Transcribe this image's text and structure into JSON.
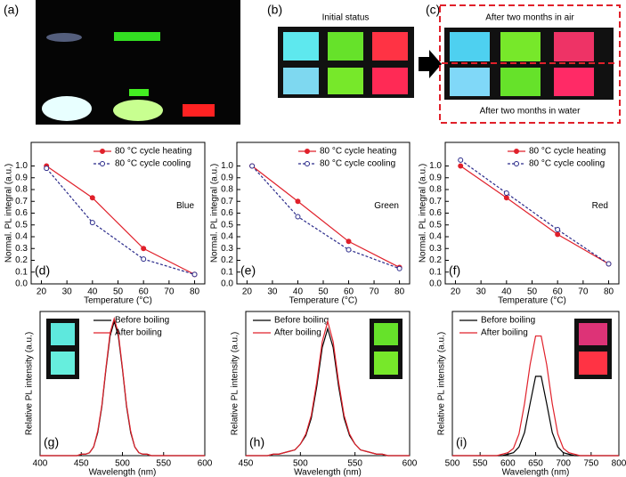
{
  "photos": {
    "a": "(a)",
    "b": "(b)",
    "b_caption": "Initial status",
    "c": "(c)",
    "c_top": "After two months in air",
    "c_bottom": "After two months in water"
  },
  "chart_data": [
    {
      "type": "line",
      "panel": "(d)",
      "annotation": "Blue",
      "xlabel": "Temperature (°C)",
      "ylabel": "Normal. PL integral (a.u.)",
      "x": [
        22,
        40,
        60,
        80
      ],
      "xlim": [
        16,
        84
      ],
      "xticks": [
        20,
        30,
        40,
        50,
        60,
        70,
        80
      ],
      "ylim": [
        0,
        1.2
      ],
      "yticks": [
        {
          "value": 0,
          "label": "0.0"
        },
        {
          "value": 0.1,
          "label": "0.1"
        },
        {
          "value": 0.2,
          "label": "0.2"
        },
        {
          "value": 0.3,
          "label": "0.3"
        },
        {
          "value": 0.4,
          "label": "0.4"
        },
        {
          "value": 0.5,
          "label": "0.5"
        },
        {
          "value": 0.6,
          "label": "0.6"
        },
        {
          "value": 0.7,
          "label": "0.7"
        },
        {
          "value": 0.8,
          "label": "0.8"
        },
        {
          "value": 0.9,
          "label": "0.9"
        },
        {
          "value": 1,
          "label": "1.0"
        }
      ],
      "legend": "upper right",
      "series": [
        {
          "name": "80 °C cycle heating",
          "color": "#e0202a",
          "dashed": false,
          "marker": "filled",
          "values": [
            1.0,
            0.73,
            0.3,
            0.08
          ]
        },
        {
          "name": "80 °C cycle cooling",
          "color": "#2a2a8a",
          "dashed": true,
          "marker": "open",
          "values": [
            0.98,
            0.52,
            0.21,
            0.08
          ]
        }
      ]
    },
    {
      "type": "line",
      "panel": "(e)",
      "annotation": "Green",
      "xlabel": "Temperature (°C)",
      "ylabel": "Normal. PL integral (a.u.)",
      "x": [
        22,
        40,
        60,
        80
      ],
      "xlim": [
        16,
        84
      ],
      "xticks": [
        20,
        30,
        40,
        50,
        60,
        70,
        80
      ],
      "ylim": [
        0,
        1.2
      ],
      "yticks": [
        {
          "value": 0,
          "label": "0.0"
        },
        {
          "value": 0.1,
          "label": "0.1"
        },
        {
          "value": 0.2,
          "label": "0.2"
        },
        {
          "value": 0.3,
          "label": "0.3"
        },
        {
          "value": 0.4,
          "label": "0.4"
        },
        {
          "value": 0.5,
          "label": "0.5"
        },
        {
          "value": 0.6,
          "label": "0.6"
        },
        {
          "value": 0.7,
          "label": "0.7"
        },
        {
          "value": 0.8,
          "label": "0.8"
        },
        {
          "value": 0.9,
          "label": "0.9"
        },
        {
          "value": 1,
          "label": "1.0"
        }
      ],
      "legend": "upper right",
      "series": [
        {
          "name": "80 °C cycle heating",
          "color": "#e0202a",
          "dashed": false,
          "marker": "filled",
          "values": [
            1.0,
            0.7,
            0.36,
            0.14
          ]
        },
        {
          "name": "80 °C cycle cooling",
          "color": "#2a2a8a",
          "dashed": true,
          "marker": "open",
          "values": [
            1.0,
            0.57,
            0.29,
            0.13
          ]
        }
      ]
    },
    {
      "type": "line",
      "panel": "(f)",
      "annotation": "Red",
      "xlabel": "Temperature (°C)",
      "ylabel": "Normal. PL integral (a.u.)",
      "x": [
        22,
        40,
        60,
        80
      ],
      "xlim": [
        16,
        84
      ],
      "xticks": [
        20,
        30,
        40,
        50,
        60,
        70,
        80
      ],
      "ylim": [
        0,
        1.2
      ],
      "yticks": [
        {
          "value": 0,
          "label": "0.0"
        },
        {
          "value": 0.1,
          "label": "0.1"
        },
        {
          "value": 0.2,
          "label": "0.2"
        },
        {
          "value": 0.3,
          "label": "0.3"
        },
        {
          "value": 0.4,
          "label": "0.4"
        },
        {
          "value": 0.5,
          "label": "0.5"
        },
        {
          "value": 0.6,
          "label": "0.6"
        },
        {
          "value": 0.7,
          "label": "0.7"
        },
        {
          "value": 0.8,
          "label": "0.8"
        },
        {
          "value": 0.9,
          "label": "0.9"
        },
        {
          "value": 1,
          "label": "1.0"
        }
      ],
      "legend": "upper right",
      "series": [
        {
          "name": "80 °C cycle heating",
          "color": "#e0202a",
          "dashed": false,
          "marker": "filled",
          "values": [
            1.0,
            0.73,
            0.42,
            0.17
          ]
        },
        {
          "name": "80 °C cycle cooling",
          "color": "#2a2a8a",
          "dashed": true,
          "marker": "open",
          "values": [
            1.05,
            0.77,
            0.46,
            0.17
          ]
        }
      ]
    },
    {
      "type": "line",
      "panel": "(g)",
      "xlabel": "Wavelength (nm)",
      "ylabel": "Relative PL intensity (a.u.)",
      "x": [
        400,
        405,
        410,
        415,
        420,
        425,
        430,
        435,
        440,
        445,
        450,
        455,
        460,
        465,
        470,
        475,
        480,
        485,
        490,
        495,
        500,
        505,
        510,
        515,
        520,
        525,
        530,
        535,
        540,
        545,
        550,
        555,
        560,
        565,
        570,
        575,
        580,
        585,
        590,
        595,
        600
      ],
      "xlim": [
        400,
        600
      ],
      "xticks": [
        400,
        450,
        500,
        550,
        600
      ],
      "ylim": [
        0,
        1
      ],
      "legend": "upper right",
      "series": [
        {
          "name": "Before boiling",
          "color": "#000000",
          "dashed": false,
          "marker": "none",
          "values": [
            0,
            0,
            0,
            0,
            0,
            0,
            0,
            0,
            0,
            0,
            0.01,
            0.01,
            0.02,
            0.06,
            0.16,
            0.34,
            0.6,
            0.83,
            0.93,
            0.83,
            0.6,
            0.34,
            0.16,
            0.06,
            0.02,
            0.01,
            0.01,
            0,
            0,
            0,
            0,
            0,
            0,
            0,
            0,
            0,
            0,
            0,
            0,
            0,
            0
          ]
        },
        {
          "name": "After boiling",
          "color": "#e0202a",
          "dashed": false,
          "marker": "none",
          "values": [
            0,
            0,
            0,
            0,
            0,
            0,
            0,
            0,
            0,
            0,
            0.01,
            0.01,
            0.02,
            0.06,
            0.17,
            0.35,
            0.61,
            0.85,
            0.95,
            0.85,
            0.61,
            0.35,
            0.17,
            0.06,
            0.02,
            0.01,
            0.01,
            0,
            0,
            0,
            0,
            0,
            0,
            0,
            0,
            0,
            0,
            0,
            0,
            0,
            0
          ]
        }
      ]
    },
    {
      "type": "line",
      "panel": "(h)",
      "xlabel": "Wavelength (nm)",
      "ylabel": "Relative PL intensity (a.u.)",
      "x": [
        450,
        455,
        460,
        465,
        470,
        475,
        480,
        485,
        490,
        495,
        500,
        505,
        510,
        515,
        520,
        525,
        530,
        535,
        540,
        545,
        550,
        555,
        560,
        565,
        570,
        575,
        580,
        585,
        590,
        595,
        600
      ],
      "xlim": [
        450,
        600
      ],
      "xticks": [
        450,
        500,
        550,
        600
      ],
      "ylim": [
        0,
        1
      ],
      "legend": "upper left",
      "series": [
        {
          "name": "Before boiling",
          "color": "#000000",
          "dashed": false,
          "marker": "none",
          "values": [
            0,
            0,
            0,
            0,
            0,
            0.01,
            0.01,
            0.02,
            0.03,
            0.04,
            0.08,
            0.14,
            0.26,
            0.48,
            0.75,
            0.88,
            0.75,
            0.48,
            0.26,
            0.14,
            0.08,
            0.04,
            0.03,
            0.02,
            0.01,
            0.01,
            0,
            0,
            0,
            0,
            0
          ]
        },
        {
          "name": "After boiling",
          "color": "#e0202a",
          "dashed": false,
          "marker": "none",
          "values": [
            0,
            0,
            0,
            0,
            0,
            0.01,
            0.01,
            0.02,
            0.03,
            0.04,
            0.08,
            0.15,
            0.28,
            0.51,
            0.79,
            0.93,
            0.79,
            0.51,
            0.28,
            0.15,
            0.08,
            0.04,
            0.03,
            0.02,
            0.01,
            0.01,
            0,
            0,
            0,
            0,
            0
          ]
        }
      ]
    },
    {
      "type": "line",
      "panel": "(i)",
      "xlabel": "Wavelength (nm)",
      "ylabel": "Relative PL intensity (a.u.)",
      "x": [
        500,
        510,
        520,
        530,
        540,
        550,
        560,
        570,
        580,
        590,
        600,
        610,
        620,
        630,
        640,
        650,
        660,
        670,
        680,
        690,
        700,
        710,
        720,
        730,
        740,
        750,
        760,
        770,
        780,
        790,
        800
      ],
      "xlim": [
        500,
        800
      ],
      "xticks": [
        500,
        550,
        600,
        650,
        700,
        750,
        800
      ],
      "ylim": [
        0,
        1
      ],
      "legend": "upper left",
      "series": [
        {
          "name": "Before boiling",
          "color": "#000000",
          "dashed": false,
          "marker": "none",
          "values": [
            0,
            0,
            0,
            0,
            0,
            0,
            0,
            0,
            0,
            0,
            0.01,
            0.02,
            0.06,
            0.16,
            0.36,
            0.55,
            0.55,
            0.36,
            0.16,
            0.06,
            0.02,
            0.01,
            0,
            0,
            0,
            0,
            0,
            0,
            0,
            0,
            0
          ]
        },
        {
          "name": "After boiling",
          "color": "#e0202a",
          "dashed": false,
          "marker": "none",
          "values": [
            0,
            0,
            0,
            0,
            0,
            0,
            0,
            0,
            0,
            0.01,
            0.02,
            0.05,
            0.15,
            0.36,
            0.63,
            0.83,
            0.83,
            0.63,
            0.36,
            0.15,
            0.05,
            0.02,
            0.01,
            0,
            0,
            0,
            0,
            0,
            0,
            0,
            0
          ]
        }
      ]
    }
  ]
}
